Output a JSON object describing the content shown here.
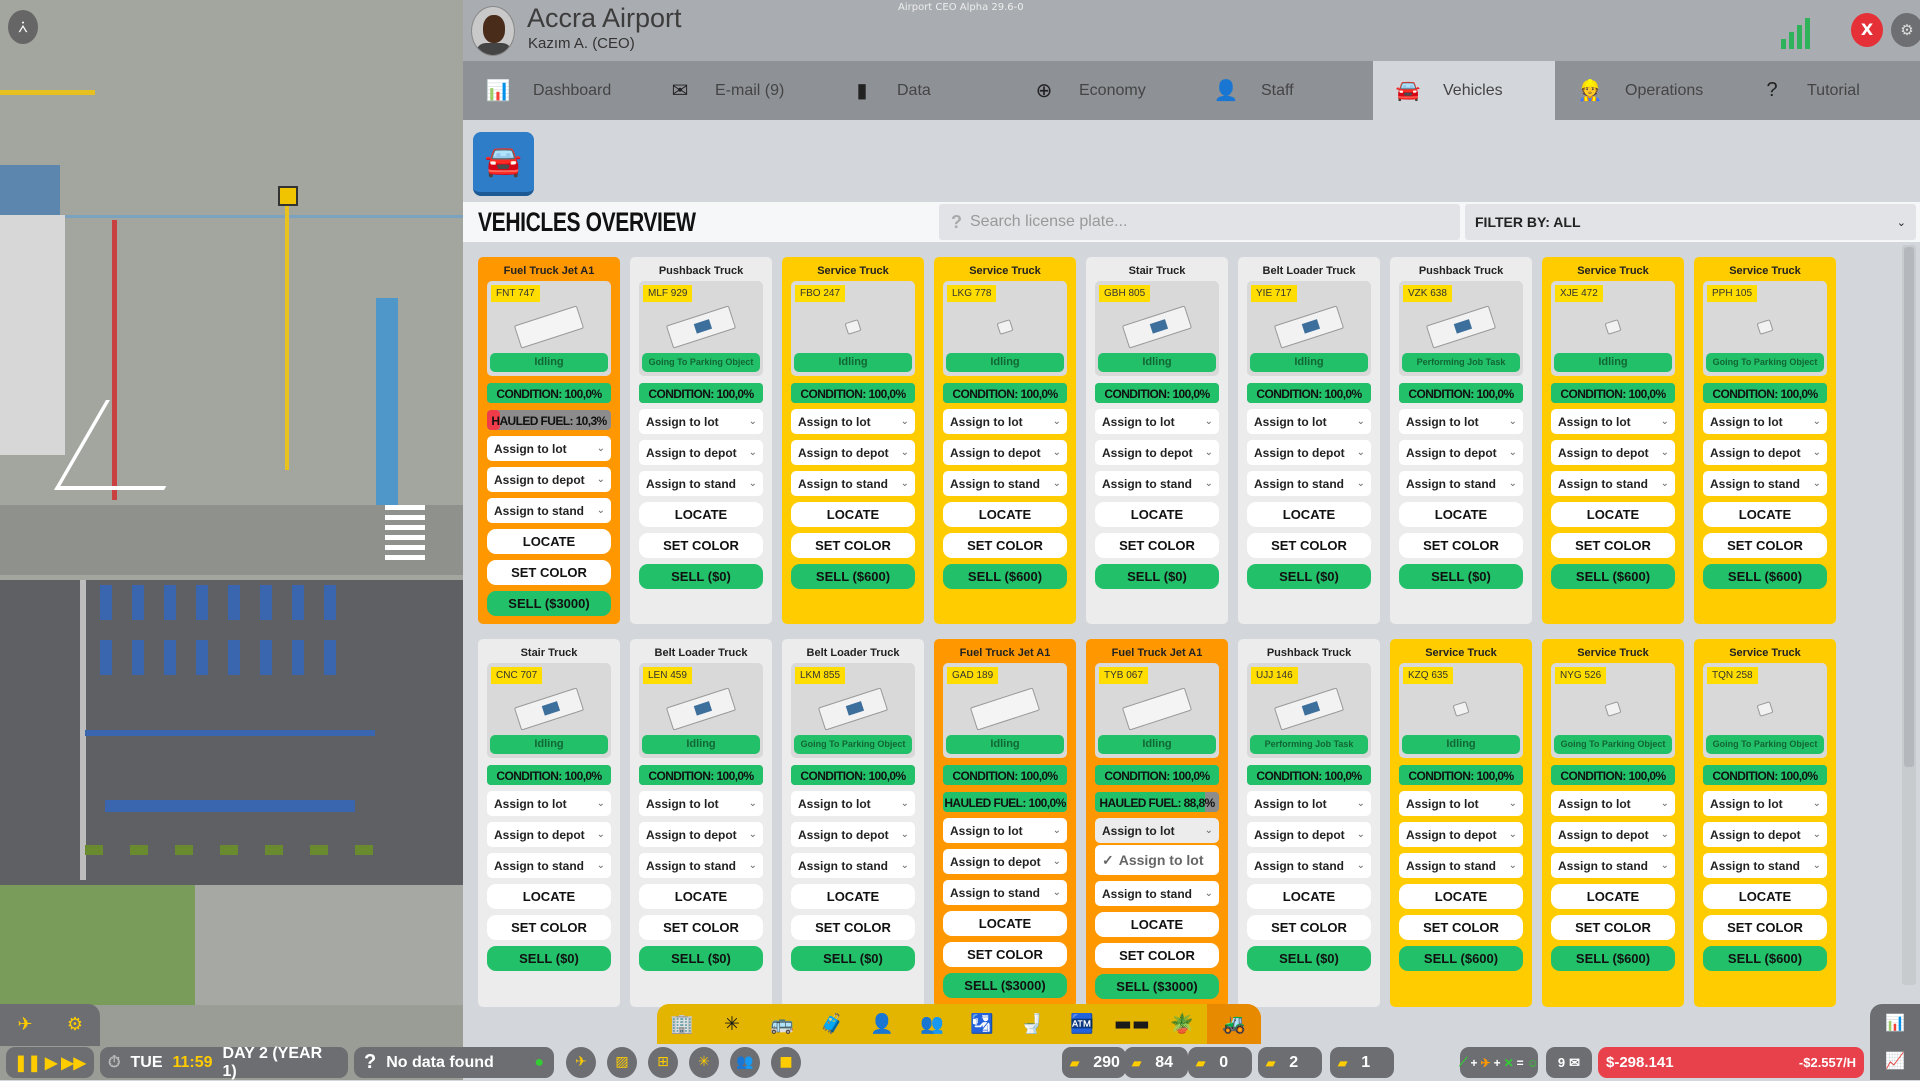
{
  "app": {
    "version": "Airport CEO Alpha 29.6-0",
    "airport_name": "Accra Airport",
    "ceo": "Kazım A. (CEO)",
    "close_label": "X"
  },
  "colors": {
    "fuel": "#ff9800",
    "service": "#ffcc00",
    "default": "#ececec",
    "status_green": "#23c06a",
    "low_red": "#f03c4a",
    "accent_blue": "#2e7dc8",
    "toolbar_yellow": "#e3b400"
  },
  "tabs": [
    {
      "label": "Dashboard",
      "icon": "bar-chart-icon",
      "glyph": "📊"
    },
    {
      "label": "E-mail (9)",
      "icon": "envelope-icon",
      "glyph": "✉"
    },
    {
      "label": "Data",
      "icon": "signal-bars-icon",
      "glyph": "▮"
    },
    {
      "label": "Economy",
      "icon": "coins-icon",
      "glyph": "⊕"
    },
    {
      "label": "Staff",
      "icon": "person-icon",
      "glyph": "👤"
    },
    {
      "label": "Vehicles",
      "icon": "car-icon",
      "glyph": "🚘",
      "active": true
    },
    {
      "label": "Operations",
      "icon": "worker-icon",
      "glyph": "👷"
    },
    {
      "label": "Tutorial",
      "icon": "question-icon",
      "glyph": "?"
    }
  ],
  "overview": {
    "title": "VEHICLES OVERVIEW",
    "search_placeholder": "Search license plate...",
    "filter_label": "FILTER BY:  ALL"
  },
  "labels": {
    "assign_lot": "Assign to lot",
    "assign_depot": "Assign to depot",
    "assign_stand": "Assign to stand",
    "locate": "LOCATE",
    "set_color": "SET COLOR",
    "condition_prefix": "CONDITION: ",
    "fuel_prefix": "HAULED FUEL: ",
    "open_option": "Assign to lot"
  },
  "vehicles": [
    [
      {
        "type": "Fuel Truck Jet A1",
        "kind": "fuel",
        "plate": "FNT 747",
        "status": "Idling",
        "condition": "100,0%",
        "fuel": "10,3%",
        "fuel_value": 10.3,
        "sell": "SELL ($3000)"
      },
      {
        "type": "Pushback Truck",
        "kind": "default",
        "plate": "MLF 929",
        "status": "Going To Parking Object",
        "condition": "100,0%",
        "sell": "SELL ($0)"
      },
      {
        "type": "Service Truck",
        "kind": "service",
        "plate": "FBO 247",
        "status": "Idling",
        "condition": "100,0%",
        "sell": "SELL ($600)"
      },
      {
        "type": "Service Truck",
        "kind": "service",
        "plate": "LKG 778",
        "status": "Idling",
        "condition": "100,0%",
        "sell": "SELL ($600)"
      },
      {
        "type": "Stair Truck",
        "kind": "default",
        "plate": "GBH 805",
        "status": "Idling",
        "condition": "100,0%",
        "sell": "SELL ($0)"
      },
      {
        "type": "Belt Loader Truck",
        "kind": "default",
        "plate": "YIE 717",
        "status": "Idling",
        "condition": "100,0%",
        "sell": "SELL ($0)"
      },
      {
        "type": "Pushback Truck",
        "kind": "default",
        "plate": "VZK 638",
        "status": "Performing Job Task",
        "condition": "100,0%",
        "sell": "SELL ($0)"
      },
      {
        "type": "Service Truck",
        "kind": "service",
        "plate": "XJE 472",
        "status": "Idling",
        "condition": "100,0%",
        "sell": "SELL ($600)"
      },
      {
        "type": "Service Truck",
        "kind": "service",
        "plate": "PPH 105",
        "status": "Going To Parking Object",
        "condition": "100,0%",
        "sell": "SELL ($600)"
      }
    ],
    [
      {
        "type": "Stair Truck",
        "kind": "default",
        "plate": "CNC 707",
        "status": "Idling",
        "condition": "100,0%",
        "sell": "SELL ($0)"
      },
      {
        "type": "Belt Loader Truck",
        "kind": "default",
        "plate": "LEN 459",
        "status": "Idling",
        "condition": "100,0%",
        "sell": "SELL ($0)"
      },
      {
        "type": "Belt Loader Truck",
        "kind": "default",
        "plate": "LKM 855",
        "status": "Going To Parking Object",
        "condition": "100,0%",
        "sell": "SELL ($0)"
      },
      {
        "type": "Fuel Truck Jet A1",
        "kind": "fuel",
        "plate": "GAD 189",
        "status": "Idling",
        "condition": "100,0%",
        "fuel": "100,0%",
        "fuel_value": 100,
        "sell": "SELL ($3000)"
      },
      {
        "type": "Fuel Truck Jet A1",
        "kind": "fuel",
        "plate": "TYB 067",
        "status": "Idling",
        "condition": "100,0%",
        "fuel": "88,8%",
        "fuel_value": 88.8,
        "sell": "SELL ($3000)",
        "lot_dropdown_open": true
      },
      {
        "type": "Pushback Truck",
        "kind": "default",
        "plate": "UJJ 146",
        "status": "Performing Job Task",
        "condition": "100,0%",
        "sell": "SELL ($0)"
      },
      {
        "type": "Service Truck",
        "kind": "service",
        "plate": "KZQ 635",
        "status": "Idling",
        "condition": "100,0%",
        "sell": "SELL ($600)"
      },
      {
        "type": "Service Truck",
        "kind": "service",
        "plate": "NYG 526",
        "status": "Going To Parking Object",
        "condition": "100,0%",
        "sell": "SELL ($600)"
      },
      {
        "type": "Service Truck",
        "kind": "service",
        "plate": "TQN 258",
        "status": "Going To Parking Object",
        "condition": "100,0%",
        "sell": "SELL ($600)"
      }
    ]
  ],
  "toolbar": [
    "control-tower-icon",
    "runway-light-icon",
    "bus-icon",
    "baggage-icon",
    "staff-icon",
    "security-icon",
    "check-in-icon",
    "toilet-icon",
    "shop-icon",
    "seats-icon",
    "plant-icon",
    "bulldozer-icon"
  ],
  "statusbar": {
    "day": "TUE",
    "time": "11:59",
    "date": "DAY 2 (YEAR 1)",
    "info": "No data found",
    "stats": [
      {
        "icon": "runway-icon",
        "value": "290"
      },
      {
        "icon": "luggage-icon",
        "value": "84"
      },
      {
        "icon": "arrival-icon",
        "value": "0"
      },
      {
        "icon": "flight-seat-icon",
        "value": "2"
      },
      {
        "icon": "departure-icon",
        "value": "1"
      }
    ],
    "mail_count": "9",
    "balance": "$-298.141",
    "rate": "-$2.557/H"
  }
}
